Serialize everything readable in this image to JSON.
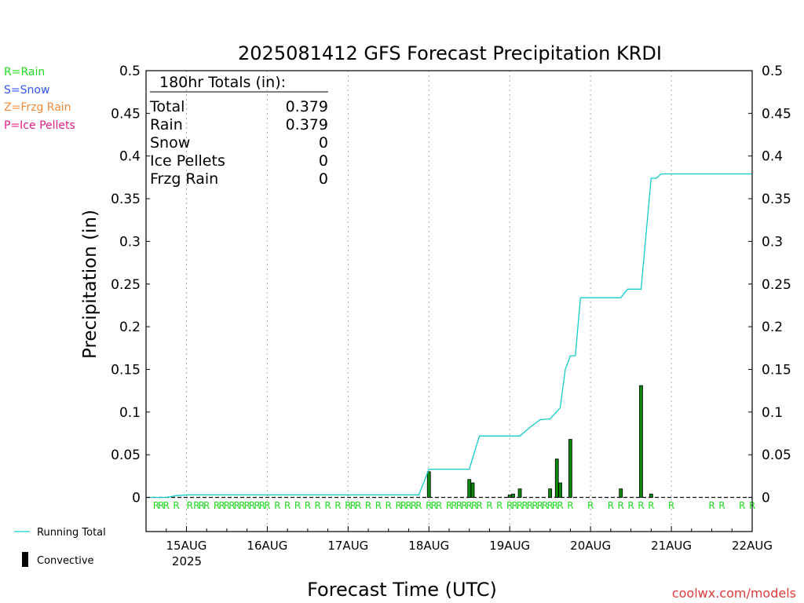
{
  "chart_data": {
    "type": "bar",
    "title": "2025081412 GFS Forecast Precipitation KRDI",
    "ylabel": "Precipitation (in)",
    "xlabel": "Forecast Time (UTC)",
    "ylim": [
      -0.04,
      0.5
    ],
    "xlim": [
      "2025-08-14T12:00Z",
      "2025-08-22T00:00Z"
    ],
    "yticks": [
      "0",
      "0.05",
      "0.1",
      "0.15",
      "0.2",
      "0.25",
      "0.3",
      "0.35",
      "0.4",
      "0.45",
      "0.5"
    ],
    "xticks": [
      "15AUG",
      "16AUG",
      "17AUG",
      "18AUG",
      "19AUG",
      "20AUG",
      "21AUG",
      "22AUG"
    ],
    "year_label": "2025",
    "grid": "vertical dotted lines at day boundaries",
    "legend_types": [
      {
        "text": "R=Rain",
        "color": "#22dd22"
      },
      {
        "text": "S=Snow",
        "color": "#3355ee"
      },
      {
        "text": "Z=Frzg Rain",
        "color": "#f08a3a"
      },
      {
        "text": "P=Ice Pellets",
        "color": "#e0208a"
      }
    ],
    "legend_series": [
      {
        "name": "Running Total",
        "color": "#11cccc"
      },
      {
        "name": "Convective",
        "color": "#000000"
      }
    ],
    "totals": {
      "header": "180hr Totals (in):",
      "rows": [
        {
          "label": "Total",
          "value": "0.379"
        },
        {
          "label": "Rain",
          "value": "0.379"
        },
        {
          "label": "Snow",
          "value": "0"
        },
        {
          "label": "Ice Pellets",
          "value": "0"
        },
        {
          "label": "Frzg Rain",
          "value": "0"
        }
      ]
    },
    "series": [
      {
        "name": "Running Total",
        "color": "#11cccc",
        "points": [
          [
            0,
            0.0
          ],
          [
            6,
            0.0
          ],
          [
            9,
            0.002
          ],
          [
            12,
            0.003
          ],
          [
            81,
            0.003
          ],
          [
            84,
            0.033
          ],
          [
            96,
            0.033
          ],
          [
            99,
            0.072
          ],
          [
            111,
            0.072
          ],
          [
            114,
            0.082
          ],
          [
            117,
            0.091
          ],
          [
            120,
            0.092
          ],
          [
            123,
            0.105
          ],
          [
            124.5,
            0.15
          ],
          [
            126,
            0.166
          ],
          [
            127.5,
            0.166
          ],
          [
            129,
            0.234
          ],
          [
            141,
            0.234
          ],
          [
            143,
            0.244
          ],
          [
            147,
            0.244
          ],
          [
            150,
            0.374
          ],
          [
            151.5,
            0.374
          ],
          [
            153,
            0.379
          ],
          [
            180,
            0.379
          ]
        ]
      },
      {
        "name": "Convective",
        "color": "#000000",
        "bar_fill": "#0a8a0a",
        "bars": [
          [
            84,
            0.03
          ],
          [
            96,
            0.021
          ],
          [
            97,
            0.017
          ],
          [
            108,
            0.003
          ],
          [
            109,
            0.004
          ],
          [
            111,
            0.01
          ],
          [
            120,
            0.01
          ],
          [
            122,
            0.045
          ],
          [
            123,
            0.017
          ],
          [
            126,
            0.068
          ],
          [
            141,
            0.01
          ],
          [
            147,
            0.131
          ],
          [
            150,
            0.004
          ]
        ]
      }
    ],
    "ptype_marks": [
      {
        "hours": [
          3,
          4.5,
          6,
          9,
          13,
          15,
          16.5,
          18,
          21,
          22.5,
          24,
          25.5,
          27,
          28.5,
          30,
          31.5,
          33,
          34.5,
          36,
          39,
          42,
          45,
          48,
          51,
          54,
          57,
          60,
          61.5,
          63,
          66,
          69,
          72,
          75,
          76.5,
          78,
          79.5,
          81,
          84,
          85.5,
          87,
          90,
          91.5,
          93,
          94.5,
          96,
          97.5,
          99,
          102,
          105,
          108,
          109.5,
          111,
          112.5,
          114,
          115.5,
          117,
          118.5,
          120,
          121.5,
          123,
          126,
          132,
          138,
          141,
          144,
          147,
          150,
          156,
          168,
          171,
          177,
          180
        ],
        "letter": "R",
        "color": "#22dd22"
      }
    ]
  },
  "watermark": "coolwx.com/models",
  "watermark_color": "#e23a3a"
}
